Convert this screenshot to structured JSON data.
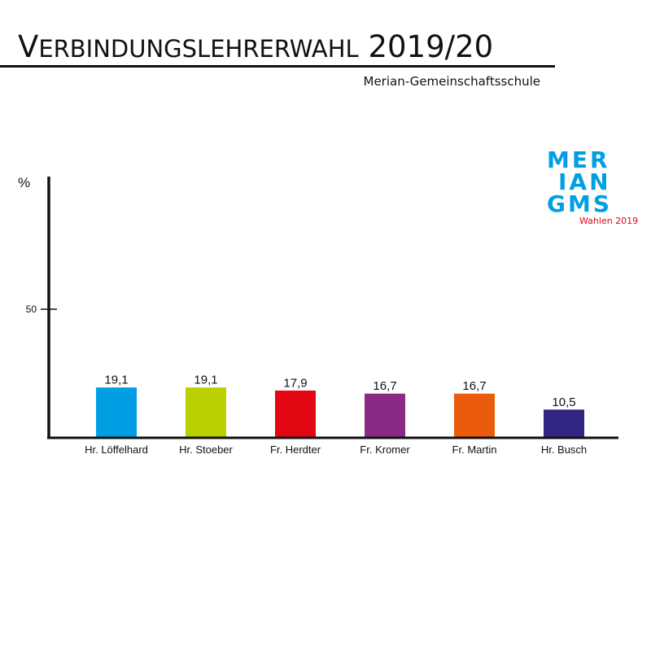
{
  "header": {
    "title": "Verbindungslehrerwahl 2019/20",
    "subtitle": "Merian-Gemeinschaftsschule"
  },
  "logo": {
    "lines": [
      "MER",
      "IAN",
      "GMS"
    ],
    "caption": "Wahlen 2019",
    "color": "#009fe3",
    "caption_color": "#e30613"
  },
  "chart_data": {
    "type": "bar",
    "title": "Verbindungslehrerwahl 2019/20",
    "subtitle": "Merian-Gemeinschaftsschule",
    "ylabel": "%",
    "xlabel": "",
    "ylim": [
      0,
      100
    ],
    "yticks": [
      50
    ],
    "grid": false,
    "categories": [
      "Hr. Löffelhard",
      "Hr. Stoeber",
      "Fr. Herdter",
      "Fr. Kromer",
      "Fr. Martin",
      "Hr. Busch"
    ],
    "values": [
      19.1,
      19.1,
      17.9,
      16.7,
      16.7,
      10.5
    ],
    "value_labels": [
      "19,1",
      "19,1",
      "17,9",
      "16,7",
      "16,7",
      "10,5"
    ],
    "colors": [
      "#009fe3",
      "#bccf00",
      "#e30613",
      "#8b2a85",
      "#ea5b0c",
      "#312783"
    ]
  }
}
